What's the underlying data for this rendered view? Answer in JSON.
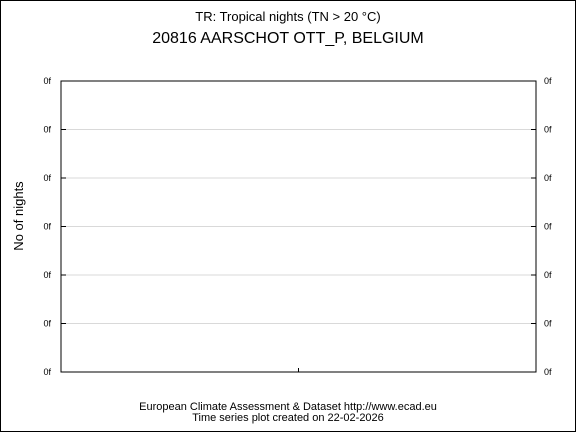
{
  "chart_data": {
    "type": "line",
    "subtitle": "TR: Tropical nights (TN > 20 °C)",
    "title": "20816 AARSCHOT OTT_P, BELGIUM",
    "ylabel": "No of nights",
    "xlabel": "",
    "y_tick_labels": [
      "0f",
      "0f",
      "0f",
      "0f",
      "0f",
      "0f",
      "0f"
    ],
    "x_tick_labels": [],
    "series": [],
    "grid": true
  },
  "footer": {
    "line1": "European Climate Assessment & Dataset  http://www.ecad.eu",
    "line2": "Time series plot created on 22-02-2026"
  },
  "colors": {
    "axis": "#000000",
    "grid": "#d9d9d9",
    "background": "#ffffff"
  }
}
